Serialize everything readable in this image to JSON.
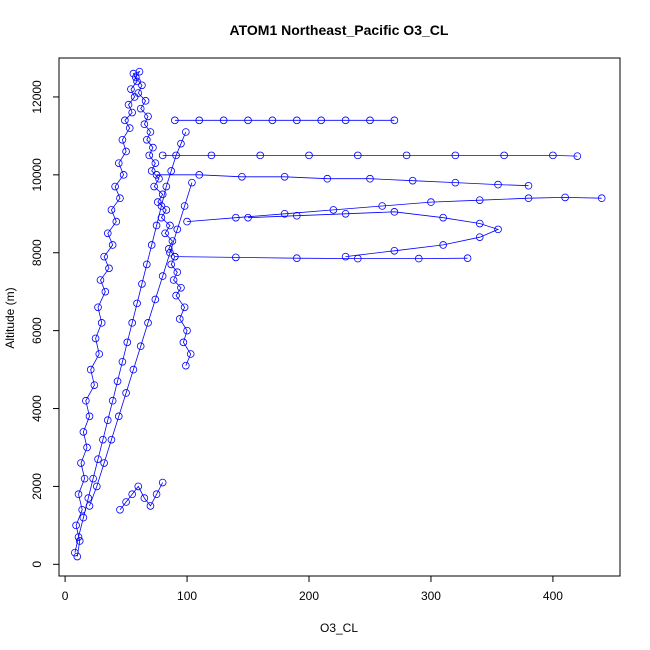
{
  "chart_data": {
    "type": "scatter",
    "title": "ATOM1 Northeast_Pacific O3_CL",
    "xlabel": "O3_CL",
    "ylabel": "Altitude (m)",
    "xlim": [
      -5,
      455
    ],
    "ylim": [
      -300,
      13000
    ],
    "x_ticks": [
      0,
      100,
      200,
      300,
      400
    ],
    "y_ticks": [
      0,
      2000,
      4000,
      6000,
      8000,
      10000,
      12000
    ],
    "marker": "open-circle",
    "connected": true,
    "color": "#0000ff",
    "grid": false,
    "series": [
      {
        "x": [
          10,
          12,
          9,
          14,
          11,
          16,
          13,
          18,
          15,
          20,
          17,
          24,
          21,
          28,
          25,
          30,
          27,
          33,
          29,
          36,
          32,
          39,
          35,
          42,
          38,
          45,
          41,
          48,
          44,
          50,
          47,
          53,
          49,
          55,
          52,
          57,
          54,
          59,
          56,
          61,
          58,
          63,
          60,
          66,
          62,
          68,
          65,
          70,
          67,
          72,
          69,
          74,
          71,
          77,
          73,
          80,
          76,
          83,
          79,
          86,
          82,
          88,
          85,
          90,
          87,
          92,
          89,
          95,
          91,
          98,
          94,
          100,
          97,
          103,
          99
        ],
        "y": [
          200,
          600,
          1000,
          1400,
          1800,
          2200,
          2600,
          3000,
          3400,
          3800,
          4200,
          4600,
          5000,
          5400,
          5800,
          6200,
          6600,
          7000,
          7300,
          7600,
          7900,
          8200,
          8500,
          8800,
          9100,
          9400,
          9700,
          10000,
          10300,
          10600,
          10900,
          11200,
          11400,
          11600,
          11800,
          12000,
          12200,
          12400,
          12600,
          12650,
          12500,
          12300,
          12100,
          11900,
          11700,
          11500,
          11300,
          11100,
          10900,
          10700,
          10500,
          10300,
          10100,
          9900,
          9700,
          9500,
          9300,
          9100,
          8900,
          8700,
          8500,
          8300,
          8100,
          7900,
          7700,
          7500,
          7300,
          7100,
          6900,
          6600,
          6300,
          6000,
          5700,
          5400,
          5100
        ]
      },
      {
        "x": [
          8,
          11,
          15,
          19,
          23,
          27,
          31,
          35,
          39,
          43,
          47,
          51,
          55,
          59,
          63,
          67,
          71,
          75,
          79,
          83,
          87,
          91,
          95,
          99
        ],
        "y": [
          300,
          700,
          1200,
          1700,
          2200,
          2700,
          3200,
          3700,
          4200,
          4700,
          5200,
          5700,
          6200,
          6700,
          7200,
          7700,
          8200,
          8700,
          9200,
          9700,
          10100,
          10500,
          10800,
          11100
        ]
      },
      {
        "x": [
          20,
          26,
          32,
          38,
          44,
          50,
          56,
          62,
          68,
          74,
          80,
          86,
          92,
          98,
          104
        ],
        "y": [
          1500,
          2000,
          2600,
          3200,
          3800,
          4400,
          5000,
          5600,
          6200,
          6800,
          7400,
          8000,
          8600,
          9200,
          9800
        ]
      },
      {
        "x": [
          45,
          50,
          55,
          60,
          65,
          70,
          75,
          80
        ],
        "y": [
          1400,
          1600,
          1800,
          2000,
          1700,
          1500,
          1800,
          2100
        ]
      },
      {
        "x": [
          90,
          110,
          130,
          150,
          170,
          190,
          210,
          230,
          250,
          270
        ],
        "y": [
          11400,
          11400,
          11400,
          11400,
          11400,
          11400,
          11400,
          11400,
          11400,
          11400
        ]
      },
      {
        "x": [
          80,
          120,
          160,
          200,
          240,
          280,
          320,
          360,
          400,
          420
        ],
        "y": [
          10500,
          10500,
          10500,
          10500,
          10500,
          10500,
          10500,
          10500,
          10500,
          10480
        ]
      },
      {
        "x": [
          75,
          110,
          145,
          180,
          215,
          250,
          285,
          320,
          355,
          380
        ],
        "y": [
          10000,
          10000,
          9950,
          9950,
          9900,
          9900,
          9850,
          9800,
          9750,
          9720
        ]
      },
      {
        "x": [
          100,
          140,
          180,
          220,
          260,
          300,
          340,
          380,
          410,
          440
        ],
        "y": [
          8800,
          8900,
          9000,
          9100,
          9200,
          9300,
          9350,
          9400,
          9420,
          9400
        ]
      },
      {
        "x": [
          150,
          190,
          230,
          270,
          310,
          340,
          355,
          340,
          310,
          270,
          230
        ],
        "y": [
          8900,
          8950,
          9000,
          9050,
          8900,
          8750,
          8600,
          8400,
          8200,
          8050,
          7900
        ]
      },
      {
        "x": [
          90,
          140,
          190,
          240,
          290,
          330
        ],
        "y": [
          7900,
          7880,
          7860,
          7850,
          7850,
          7860
        ]
      }
    ]
  }
}
